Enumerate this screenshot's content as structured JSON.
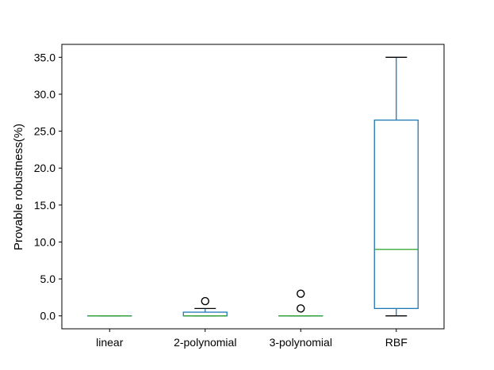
{
  "chart_data": {
    "type": "box",
    "title": "",
    "xlabel": "",
    "ylabel": "Provable robustness(%)",
    "categories": [
      "linear",
      "2-polynomial",
      "3-polynomial",
      "RBF"
    ],
    "ylim": [
      -1.75,
      36.75
    ],
    "yticks": [
      0.0,
      5.0,
      10.0,
      15.0,
      20.0,
      25.0,
      30.0,
      35.0
    ],
    "ytick_labels": [
      "0.0",
      "5.0",
      "10.0",
      "15.0",
      "20.0",
      "25.0",
      "30.0",
      "35.0"
    ],
    "grid": false,
    "boxes": [
      {
        "category": "linear",
        "whisker_low": 0.0,
        "q1": 0.0,
        "median": 0.0,
        "q3": 0.0,
        "whisker_high": 0.0,
        "outliers": []
      },
      {
        "category": "2-polynomial",
        "whisker_low": 0.0,
        "q1": 0.0,
        "median": 0.0,
        "q3": 0.5,
        "whisker_high": 1.0,
        "outliers": [
          2.0
        ]
      },
      {
        "category": "3-polynomial",
        "whisker_low": 0.0,
        "q1": 0.0,
        "median": 0.0,
        "q3": 0.0,
        "whisker_high": 0.0,
        "outliers": [
          1.0,
          3.0
        ]
      },
      {
        "category": "RBF",
        "whisker_low": 0.0,
        "q1": 1.0,
        "median": 9.0,
        "q3": 26.5,
        "whisker_high": 35.0,
        "outliers": []
      }
    ],
    "colors": {
      "box": "#1f77b4",
      "median": "#2ca02c",
      "whisker": "#000000",
      "outlier": "#000000"
    }
  }
}
